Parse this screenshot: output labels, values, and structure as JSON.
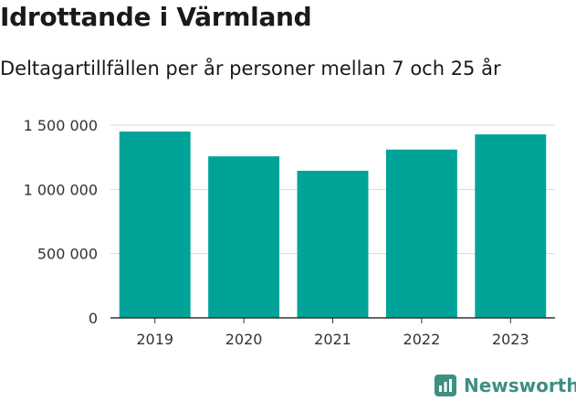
{
  "chart_data": {
    "type": "bar",
    "title": "Idrottande i Värmland",
    "subtitle": "Deltagartillfällen per år personer mellan 7 och 25 år",
    "categories": [
      "2019",
      "2020",
      "2021",
      "2022",
      "2023"
    ],
    "values": [
      1450000,
      1257000,
      1145000,
      1310000,
      1428000
    ],
    "yticks": [
      0,
      500000,
      1000000,
      1500000
    ],
    "ytick_labels": [
      "0",
      "500 000",
      "1 000 000",
      "1 500 000"
    ],
    "ylim": [
      0,
      1500000
    ],
    "xlabel": "",
    "ylabel": "",
    "grid": true,
    "bar_color": "#00a398"
  },
  "brand": {
    "name": "Newsworthy",
    "icon": "bar-chart-icon",
    "color": "#3f8f82"
  }
}
